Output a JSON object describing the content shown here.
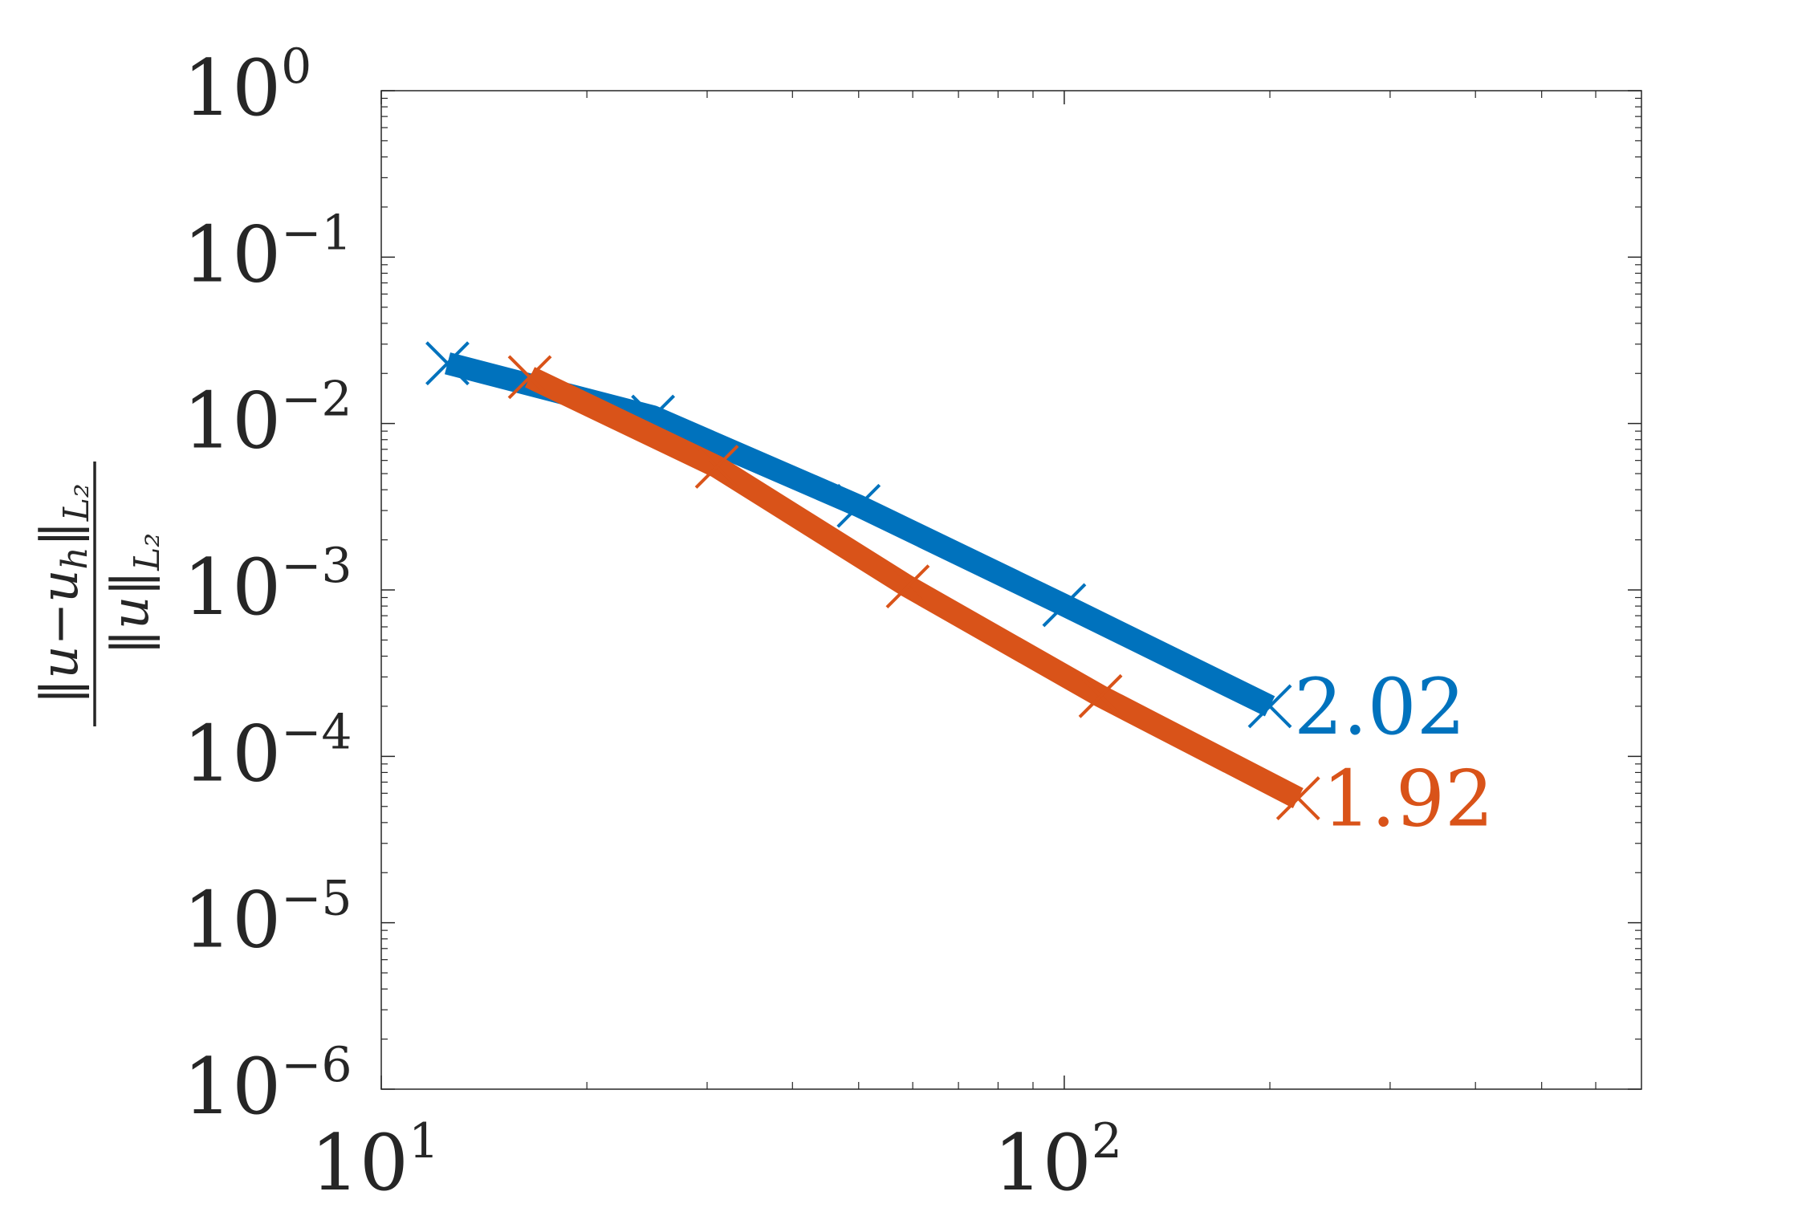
{
  "chart_data": {
    "type": "line",
    "xscale": "log",
    "yscale": "log",
    "xlim": [
      10,
      700
    ],
    "ylim": [
      1e-06,
      1
    ],
    "x_ticks": [
      {
        "value": 10,
        "base": "10",
        "exp": "1"
      },
      {
        "value": 100,
        "base": "10",
        "exp": "2"
      }
    ],
    "y_ticks": [
      {
        "value": 1,
        "base": "10",
        "exp": "0"
      },
      {
        "value": 0.1,
        "base": "10",
        "exp": "−1"
      },
      {
        "value": 0.01,
        "base": "10",
        "exp": "−2"
      },
      {
        "value": 0.001,
        "base": "10",
        "exp": "−3"
      },
      {
        "value": 0.0001,
        "base": "10",
        "exp": "−4"
      },
      {
        "value": 1e-05,
        "base": "10",
        "exp": "−5"
      },
      {
        "value": 1e-06,
        "base": "10",
        "exp": "−6"
      }
    ],
    "ylabel": "‖u−u_h‖_L2 / ‖u‖_L2",
    "grid": false,
    "box": true,
    "series": [
      {
        "color": "#0072BD",
        "marker": "x",
        "x": [
          12.5,
          25,
          50,
          100,
          200
        ],
        "y": [
          0.023,
          0.011,
          0.0032,
          0.00081,
          0.0002
        ],
        "end_label": "2.02"
      },
      {
        "color": "#D95319",
        "marker": "x",
        "x": [
          16.5,
          31,
          59,
          113,
          220
        ],
        "y": [
          0.019,
          0.0055,
          0.00105,
          0.00023,
          5.6e-05
        ],
        "end_label": "1.92"
      }
    ]
  }
}
